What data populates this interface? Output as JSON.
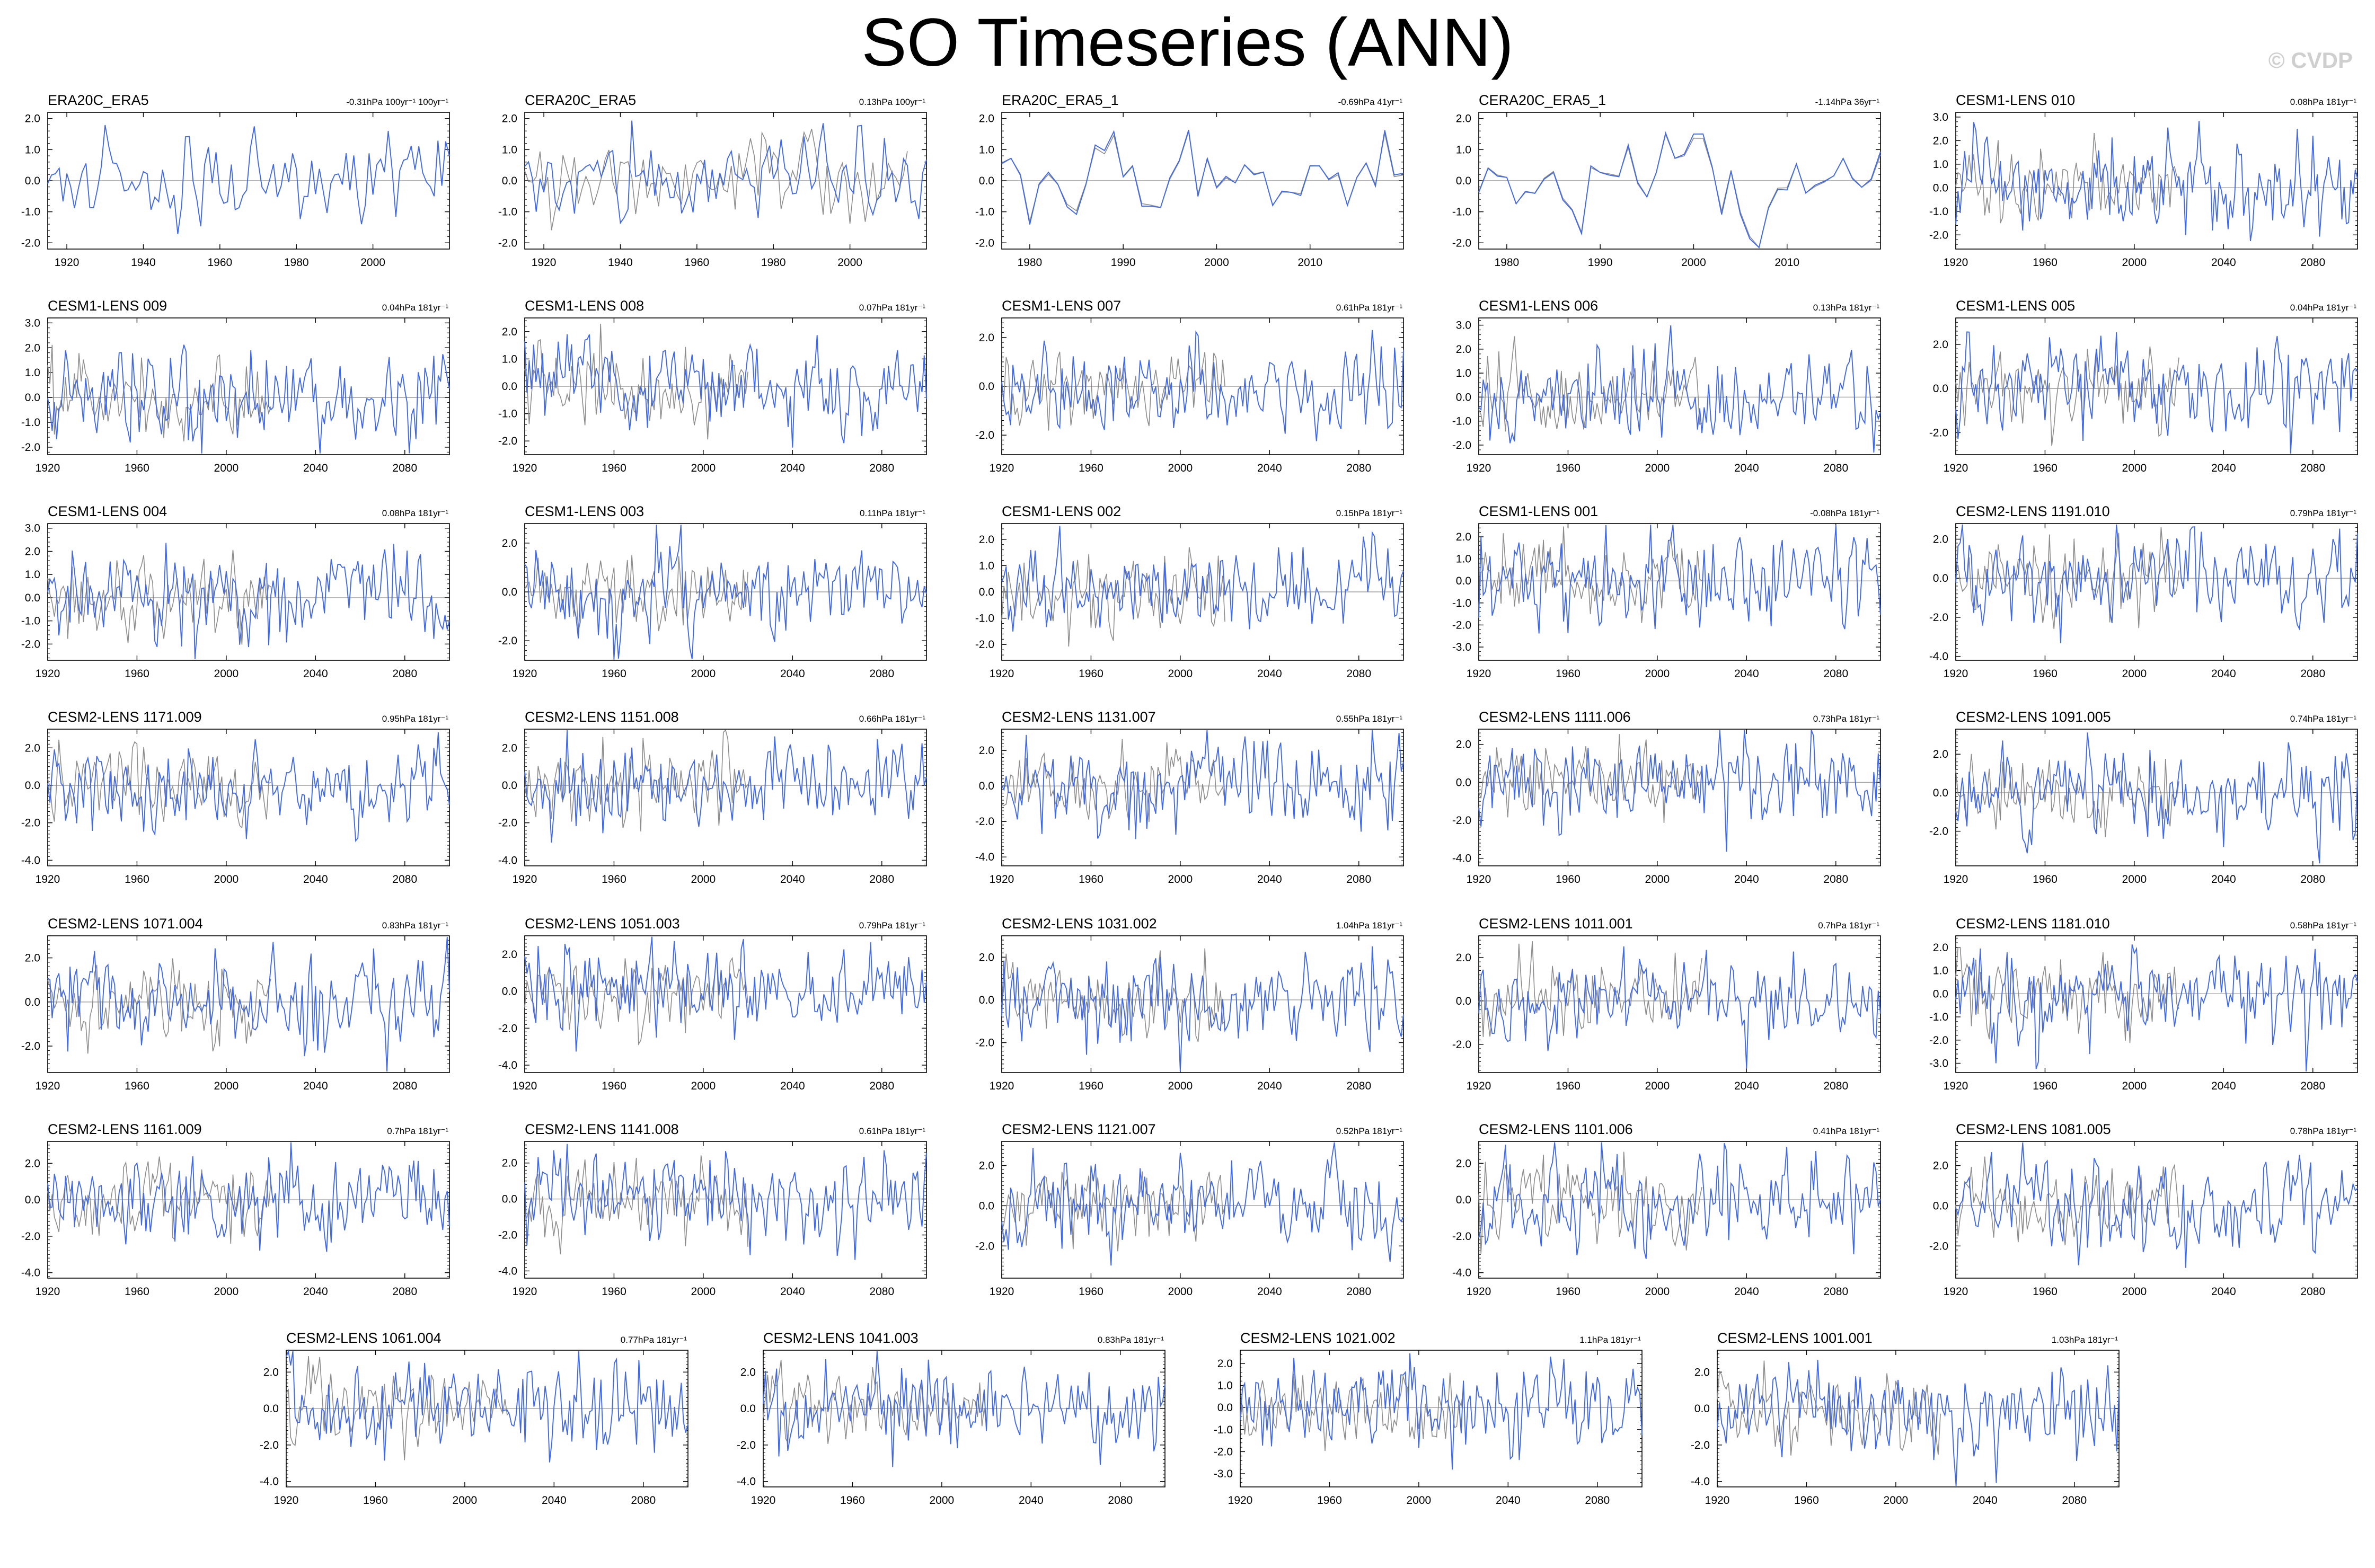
{
  "page": {
    "title": "SO Timeseries (ANN)",
    "watermark": "© CVDP"
  },
  "colors": {
    "model": "#4169e1",
    "obs": "#8c8c8c",
    "zero": "#8c8c8c",
    "frame": "#000000"
  },
  "chart_data": [
    {
      "type": "line",
      "title": "ERA20C_ERA5",
      "trend": "-0.31hPa 100yr⁻¹ 100yr⁻¹",
      "x_range": [
        1915,
        2020
      ],
      "xticks": [
        1920,
        1940,
        1960,
        1980,
        2000
      ],
      "ylim": [
        -2.2,
        2.2
      ],
      "yticks": [
        "2.0",
        "1.0",
        "0.0",
        "-1.0",
        "-2.0"
      ],
      "obs": false,
      "seed": 11
    },
    {
      "type": "line",
      "title": "CERA20C_ERA5",
      "trend": "0.13hPa 100yr⁻¹",
      "x_range": [
        1915,
        2020
      ],
      "xticks": [
        1920,
        1940,
        1960,
        1980,
        2000
      ],
      "ylim": [
        -2.2,
        2.2
      ],
      "yticks": [
        "2.0",
        "1.0",
        "0.0",
        "-1.0",
        "-2.0"
      ],
      "obs": true,
      "seed": 12
    },
    {
      "type": "line",
      "title": "ERA20C_ERA5_1",
      "trend": "-0.69hPa 41yr⁻¹",
      "x_range": [
        1977,
        2020
      ],
      "xticks": [
        1980,
        1990,
        2000,
        2010
      ],
      "ylim": [
        -2.2,
        2.2
      ],
      "yticks": [
        "2.0",
        "1.0",
        "0.0",
        "-1.0",
        "-2.0"
      ],
      "obs": true,
      "seed": 13
    },
    {
      "type": "line",
      "title": "CERA20C_ERA5_1",
      "trend": "-1.14hPa 36yr⁻¹",
      "x_range": [
        1977,
        2020
      ],
      "xticks": [
        1980,
        1990,
        2000,
        2010
      ],
      "ylim": [
        -2.2,
        2.2
      ],
      "yticks": [
        "2.0",
        "1.0",
        "0.0",
        "-1.0",
        "-2.0"
      ],
      "obs": true,
      "seed": 14
    },
    {
      "type": "line",
      "title": "CESM1-LENS 010",
      "trend": "0.08hPa 181yr⁻¹",
      "x_range": [
        1920,
        2100
      ],
      "xticks": [
        1920,
        1960,
        2000,
        2040,
        2080
      ],
      "ylim": [
        -2.6,
        3.2
      ],
      "yticks": [
        "3.0",
        "2.0",
        "1.0",
        "0.0",
        "-1.0",
        "-2.0"
      ],
      "obs": true,
      "seed": 15
    },
    {
      "type": "line",
      "title": "CESM1-LENS 009",
      "trend": "0.04hPa 181yr⁻¹",
      "x_range": [
        1920,
        2100
      ],
      "xticks": [
        1920,
        1960,
        2000,
        2040,
        2080
      ],
      "ylim": [
        -2.3,
        3.2
      ],
      "yticks": [
        "3.0",
        "2.0",
        "1.0",
        "0.0",
        "-1.0",
        "-2.0"
      ],
      "obs": true,
      "seed": 21
    },
    {
      "type": "line",
      "title": "CESM1-LENS 008",
      "trend": "0.07hPa 181yr⁻¹",
      "x_range": [
        1920,
        2100
      ],
      "xticks": [
        1920,
        1960,
        2000,
        2040,
        2080
      ],
      "ylim": [
        -2.5,
        2.5
      ],
      "yticks": [
        "2.0",
        "1.0",
        "0.0",
        "-1.0",
        "-2.0"
      ],
      "obs": true,
      "seed": 22
    },
    {
      "type": "line",
      "title": "CESM1-LENS 007",
      "trend": "0.61hPa 181yr⁻¹",
      "x_range": [
        1920,
        2100
      ],
      "xticks": [
        1920,
        1960,
        2000,
        2040,
        2080
      ],
      "ylim": [
        -2.8,
        2.8
      ],
      "yticks": [
        "2.0",
        "0.0",
        "-2.0"
      ],
      "obs": true,
      "seed": 23
    },
    {
      "type": "line",
      "title": "CESM1-LENS 006",
      "trend": "0.13hPa 181yr⁻¹",
      "x_range": [
        1920,
        2100
      ],
      "xticks": [
        1920,
        1960,
        2000,
        2040,
        2080
      ],
      "ylim": [
        -2.4,
        3.3
      ],
      "yticks": [
        "3.0",
        "2.0",
        "1.0",
        "0.0",
        "-1.0",
        "-2.0"
      ],
      "obs": true,
      "seed": 24
    },
    {
      "type": "line",
      "title": "CESM1-LENS 005",
      "trend": "0.04hPa 181yr⁻¹",
      "x_range": [
        1920,
        2100
      ],
      "xticks": [
        1920,
        1960,
        2000,
        2040,
        2080
      ],
      "ylim": [
        -3.0,
        3.2
      ],
      "yticks": [
        "2.0",
        "0.0",
        "-2.0"
      ],
      "obs": true,
      "seed": 25
    },
    {
      "type": "line",
      "title": "CESM1-LENS 004",
      "trend": "0.08hPa 181yr⁻¹",
      "x_range": [
        1920,
        2100
      ],
      "xticks": [
        1920,
        1960,
        2000,
        2040,
        2080
      ],
      "ylim": [
        -2.7,
        3.2
      ],
      "yticks": [
        "3.0",
        "2.0",
        "1.0",
        "0.0",
        "-1.0",
        "-2.0"
      ],
      "obs": true,
      "seed": 31
    },
    {
      "type": "line",
      "title": "CESM1-LENS 003",
      "trend": "0.11hPa 181yr⁻¹",
      "x_range": [
        1920,
        2100
      ],
      "xticks": [
        1920,
        1960,
        2000,
        2040,
        2080
      ],
      "ylim": [
        -2.8,
        2.8
      ],
      "yticks": [
        "2.0",
        "0.0",
        "-2.0"
      ],
      "obs": true,
      "seed": 32
    },
    {
      "type": "line",
      "title": "CESM1-LENS 002",
      "trend": "0.15hPa 181yr⁻¹",
      "x_range": [
        1920,
        2100
      ],
      "xticks": [
        1920,
        1960,
        2000,
        2040,
        2080
      ],
      "ylim": [
        -2.6,
        2.6
      ],
      "yticks": [
        "2.0",
        "1.0",
        "0.0",
        "-1.0",
        "-2.0"
      ],
      "obs": true,
      "seed": 33
    },
    {
      "type": "line",
      "title": "CESM1-LENS 001",
      "trend": "-0.08hPa 181yr⁻¹",
      "x_range": [
        1920,
        2100
      ],
      "xticks": [
        1920,
        1960,
        2000,
        2040,
        2080
      ],
      "ylim": [
        -3.6,
        2.6
      ],
      "yticks": [
        "2.0",
        "1.0",
        "0.0",
        "-1.0",
        "-2.0",
        "-3.0"
      ],
      "obs": true,
      "seed": 34
    },
    {
      "type": "line",
      "title": "CESM2-LENS 1191.010",
      "trend": "0.79hPa 181yr⁻¹",
      "x_range": [
        1920,
        2100
      ],
      "xticks": [
        1920,
        1960,
        2000,
        2040,
        2080
      ],
      "ylim": [
        -4.2,
        2.8
      ],
      "yticks": [
        "2.0",
        "0.0",
        "-2.0",
        "-4.0"
      ],
      "obs": true,
      "seed": 35
    },
    {
      "type": "line",
      "title": "CESM2-LENS 1171.009",
      "trend": "0.95hPa 181yr⁻¹",
      "x_range": [
        1920,
        2100
      ],
      "xticks": [
        1920,
        1960,
        2000,
        2040,
        2080
      ],
      "ylim": [
        -4.3,
        3.0
      ],
      "yticks": [
        "2.0",
        "0.0",
        "-2.0",
        "-4.0"
      ],
      "obs": true,
      "seed": 41
    },
    {
      "type": "line",
      "title": "CESM2-LENS 1151.008",
      "trend": "0.66hPa 181yr⁻¹",
      "x_range": [
        1920,
        2100
      ],
      "xticks": [
        1920,
        1960,
        2000,
        2040,
        2080
      ],
      "ylim": [
        -4.3,
        3.0
      ],
      "yticks": [
        "2.0",
        "0.0",
        "-2.0",
        "-4.0"
      ],
      "obs": true,
      "seed": 42
    },
    {
      "type": "line",
      "title": "CESM2-LENS 1131.007",
      "trend": "0.55hPa 181yr⁻¹",
      "x_range": [
        1920,
        2100
      ],
      "xticks": [
        1920,
        1960,
        2000,
        2040,
        2080
      ],
      "ylim": [
        -4.5,
        3.2
      ],
      "yticks": [
        "2.0",
        "0.0",
        "-2.0",
        "-4.0"
      ],
      "obs": true,
      "seed": 43
    },
    {
      "type": "line",
      "title": "CESM2-LENS 1111.006",
      "trend": "0.73hPa 181yr⁻¹",
      "x_range": [
        1920,
        2100
      ],
      "xticks": [
        1920,
        1960,
        2000,
        2040,
        2080
      ],
      "ylim": [
        -4.4,
        2.8
      ],
      "yticks": [
        "2.0",
        "0.0",
        "-2.0",
        "-4.0"
      ],
      "obs": true,
      "seed": 44
    },
    {
      "type": "line",
      "title": "CESM2-LENS 1091.005",
      "trend": "0.74hPa 181yr⁻¹",
      "x_range": [
        1920,
        2100
      ],
      "xticks": [
        1920,
        1960,
        2000,
        2040,
        2080
      ],
      "ylim": [
        -3.8,
        3.3
      ],
      "yticks": [
        "2.0",
        "0.0",
        "-2.0"
      ],
      "obs": true,
      "seed": 45
    },
    {
      "type": "line",
      "title": "CESM2-LENS 1071.004",
      "trend": "0.83hPa 181yr⁻¹",
      "x_range": [
        1920,
        2100
      ],
      "xticks": [
        1920,
        1960,
        2000,
        2040,
        2080
      ],
      "ylim": [
        -3.2,
        3.0
      ],
      "yticks": [
        "2.0",
        "0.0",
        "-2.0"
      ],
      "obs": true,
      "seed": 51
    },
    {
      "type": "line",
      "title": "CESM2-LENS 1051.003",
      "trend": "0.79hPa 181yr⁻¹",
      "x_range": [
        1920,
        2100
      ],
      "xticks": [
        1920,
        1960,
        2000,
        2040,
        2080
      ],
      "ylim": [
        -4.4,
        3.0
      ],
      "yticks": [
        "2.0",
        "0.0",
        "-2.0",
        "-4.0"
      ],
      "obs": true,
      "seed": 52
    },
    {
      "type": "line",
      "title": "CESM2-LENS 1031.002",
      "trend": "1.04hPa 181yr⁻¹",
      "x_range": [
        1920,
        2100
      ],
      "xticks": [
        1920,
        1960,
        2000,
        2040,
        2080
      ],
      "ylim": [
        -3.4,
        3.0
      ],
      "yticks": [
        "2.0",
        "0.0",
        "-2.0"
      ],
      "obs": true,
      "seed": 53
    },
    {
      "type": "line",
      "title": "CESM2-LENS 1011.001",
      "trend": "0.7hPa 181yr⁻¹",
      "x_range": [
        1920,
        2100
      ],
      "xticks": [
        1920,
        1960,
        2000,
        2040,
        2080
      ],
      "ylim": [
        -3.3,
        3.0
      ],
      "yticks": [
        "2.0",
        "0.0",
        "-2.0"
      ],
      "obs": true,
      "seed": 54
    },
    {
      "type": "line",
      "title": "CESM2-LENS 1181.010",
      "trend": "0.58hPa 181yr⁻¹",
      "x_range": [
        1920,
        2100
      ],
      "xticks": [
        1920,
        1960,
        2000,
        2040,
        2080
      ],
      "ylim": [
        -3.4,
        2.5
      ],
      "yticks": [
        "2.0",
        "1.0",
        "0.0",
        "-1.0",
        "-2.0",
        "-3.0"
      ],
      "obs": true,
      "seed": 55
    },
    {
      "type": "line",
      "title": "CESM2-LENS 1161.009",
      "trend": "0.7hPa 181yr⁻¹",
      "x_range": [
        1920,
        2100
      ],
      "xticks": [
        1920,
        1960,
        2000,
        2040,
        2080
      ],
      "ylim": [
        -4.3,
        3.2
      ],
      "yticks": [
        "2.0",
        "0.0",
        "-2.0",
        "-4.0"
      ],
      "obs": true,
      "seed": 61
    },
    {
      "type": "line",
      "title": "CESM2-LENS 1141.008",
      "trend": "0.61hPa 181yr⁻¹",
      "x_range": [
        1920,
        2100
      ],
      "xticks": [
        1920,
        1960,
        2000,
        2040,
        2080
      ],
      "ylim": [
        -4.4,
        3.2
      ],
      "yticks": [
        "2.0",
        "0.0",
        "-2.0",
        "-4.0"
      ],
      "obs": true,
      "seed": 62
    },
    {
      "type": "line",
      "title": "CESM2-LENS 1121.007",
      "trend": "0.52hPa 181yr⁻¹",
      "x_range": [
        1920,
        2100
      ],
      "xticks": [
        1920,
        1960,
        2000,
        2040,
        2080
      ],
      "ylim": [
        -3.6,
        3.2
      ],
      "yticks": [
        "2.0",
        "0.0",
        "-2.0"
      ],
      "obs": true,
      "seed": 63
    },
    {
      "type": "line",
      "title": "CESM2-LENS 1101.006",
      "trend": "0.41hPa 181yr⁻¹",
      "x_range": [
        1920,
        2100
      ],
      "xticks": [
        1920,
        1960,
        2000,
        2040,
        2080
      ],
      "ylim": [
        -4.3,
        3.2
      ],
      "yticks": [
        "2.0",
        "0.0",
        "-2.0",
        "-4.0"
      ],
      "obs": true,
      "seed": 64
    },
    {
      "type": "line",
      "title": "CESM2-LENS 1081.005",
      "trend": "0.78hPa 181yr⁻¹",
      "x_range": [
        1920,
        2100
      ],
      "xticks": [
        1920,
        1960,
        2000,
        2040,
        2080
      ],
      "ylim": [
        -3.6,
        3.2
      ],
      "yticks": [
        "2.0",
        "0.0",
        "-2.0"
      ],
      "obs": true,
      "seed": 65
    },
    {
      "type": "line",
      "title": "CESM2-LENS 1061.004",
      "trend": "0.77hPa 181yr⁻¹",
      "x_range": [
        1920,
        2100
      ],
      "xticks": [
        1920,
        1960,
        2000,
        2040,
        2080
      ],
      "ylim": [
        -4.3,
        3.2
      ],
      "yticks": [
        "2.0",
        "0.0",
        "-2.0",
        "-4.0"
      ],
      "obs": true,
      "seed": 71
    },
    {
      "type": "line",
      "title": "CESM2-LENS 1041.003",
      "trend": "0.83hPa 181yr⁻¹",
      "x_range": [
        1920,
        2100
      ],
      "xticks": [
        1920,
        1960,
        2000,
        2040,
        2080
      ],
      "ylim": [
        -4.3,
        3.2
      ],
      "yticks": [
        "2.0",
        "0.0",
        "-2.0",
        "-4.0"
      ],
      "obs": true,
      "seed": 72
    },
    {
      "type": "line",
      "title": "CESM2-LENS 1021.002",
      "trend": "1.1hPa 181yr⁻¹",
      "x_range": [
        1920,
        2100
      ],
      "xticks": [
        1920,
        1960,
        2000,
        2040,
        2080
      ],
      "ylim": [
        -3.6,
        2.6
      ],
      "yticks": [
        "2.0",
        "1.0",
        "0.0",
        "-1.0",
        "-2.0",
        "-3.0"
      ],
      "obs": true,
      "seed": 73
    },
    {
      "type": "line",
      "title": "CESM2-LENS 1001.001",
      "trend": "1.03hPa 181yr⁻¹",
      "x_range": [
        1920,
        2100
      ],
      "xticks": [
        1920,
        1960,
        2000,
        2040,
        2080
      ],
      "ylim": [
        -4.3,
        3.2
      ],
      "yticks": [
        "2.0",
        "0.0",
        "-2.0",
        "-4.0"
      ],
      "obs": true,
      "seed": 74
    }
  ]
}
